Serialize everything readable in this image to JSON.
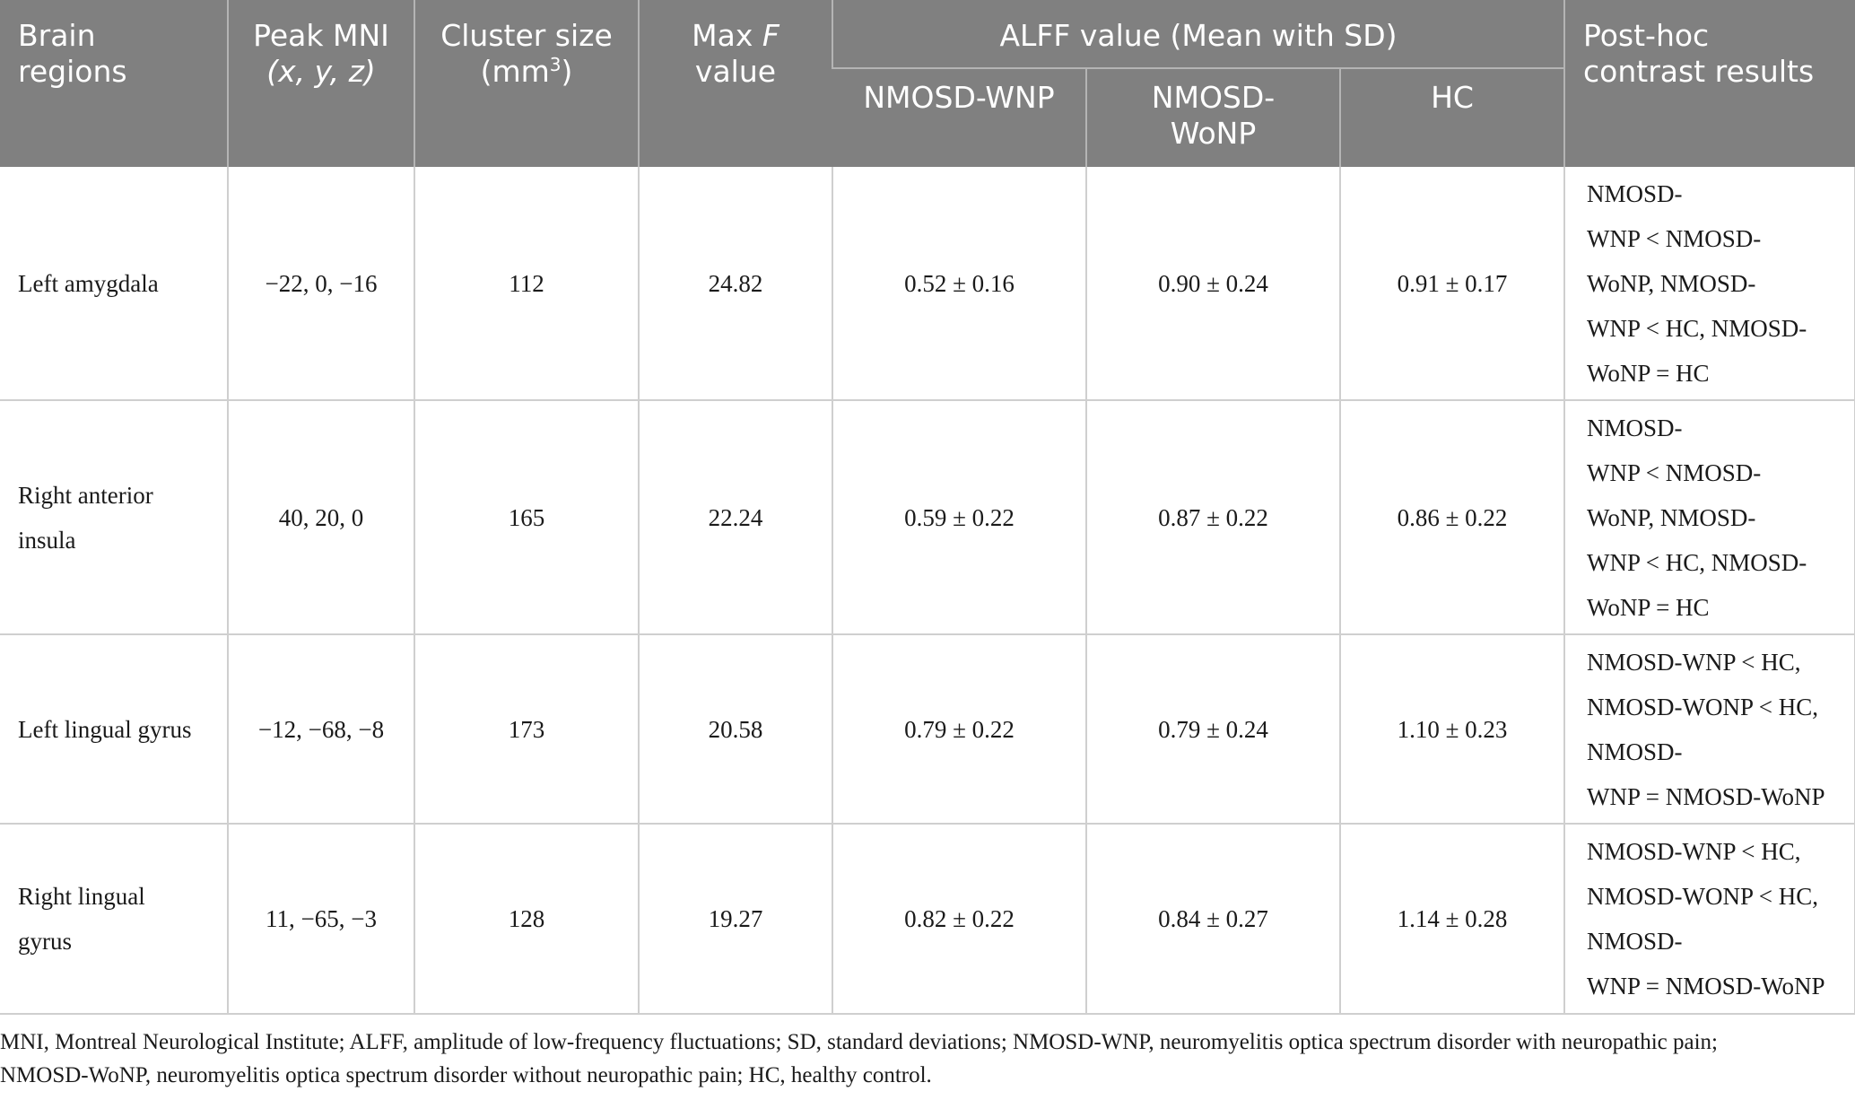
{
  "header": {
    "brain_regions": [
      "Brain",
      "regions"
    ],
    "peak_mni": [
      "Peak MNI",
      "(x, y, z)"
    ],
    "cluster_size": [
      "Cluster size",
      "(mm",
      "3",
      ")"
    ],
    "max_f": [
      "Max ",
      "F",
      "value"
    ],
    "alff_group": "ALFF value (Mean with SD)",
    "nmosd_wnp": "NMOSD-WNP",
    "nmosd_wonp": [
      "NMOSD-",
      "WoNP"
    ],
    "hc": "HC",
    "posthoc": [
      "Post-hoc",
      "contrast results"
    ]
  },
  "rows": [
    {
      "region": [
        "Left amygdala"
      ],
      "peak": "−22, 0, −16",
      "cluster": "112",
      "maxf": "24.82",
      "wnp": "0.52 ± 0.16",
      "wonp": "0.90 ± 0.24",
      "hc": "0.91 ± 0.17",
      "posthoc": [
        "NMOSD-",
        "WNP < NMOSD-",
        "WoNP, NMOSD-",
        "WNP < HC, NMOSD-",
        "WoNP = HC"
      ]
    },
    {
      "region": [
        "Right anterior",
        "insula"
      ],
      "peak": "40, 20, 0",
      "cluster": "165",
      "maxf": "22.24",
      "wnp": "0.59 ± 0.22",
      "wonp": "0.87 ± 0.22",
      "hc": "0.86 ± 0.22",
      "posthoc": [
        "NMOSD-",
        "WNP < NMOSD-",
        "WoNP, NMOSD-",
        "WNP < HC, NMOSD-",
        "WoNP = HC"
      ]
    },
    {
      "region": [
        "Left lingual gyrus"
      ],
      "peak": "−12, −68, −8",
      "cluster": "173",
      "maxf": "20.58",
      "wnp": "0.79 ± 0.22",
      "wonp": "0.79 ± 0.24",
      "hc": "1.10 ± 0.23",
      "posthoc": [
        "NMOSD-WNP < HC,",
        "NMOSD-WONP < HC,",
        "NMOSD-",
        "WNP = NMOSD-WoNP"
      ]
    },
    {
      "region": [
        "Right lingual",
        "gyrus"
      ],
      "peak": "11, −65, −3",
      "cluster": "128",
      "maxf": "19.27",
      "wnp": "0.82 ± 0.22",
      "wonp": "0.84 ± 0.27",
      "hc": "1.14 ± 0.28",
      "posthoc": [
        "NMOSD-WNP < HC,",
        "NMOSD-WONP < HC,",
        "NMOSD-",
        "WNP = NMOSD-WoNP"
      ]
    }
  ],
  "footnote": [
    "MNI, Montreal Neurological Institute; ALFF, amplitude of low-frequency fluctuations; SD, standard deviations; NMOSD-WNP, neuromyelitis optica spectrum disorder with neuropathic pain;",
    "NMOSD-WoNP, neuromyelitis optica spectrum disorder without neuropathic pain; HC, healthy control."
  ]
}
